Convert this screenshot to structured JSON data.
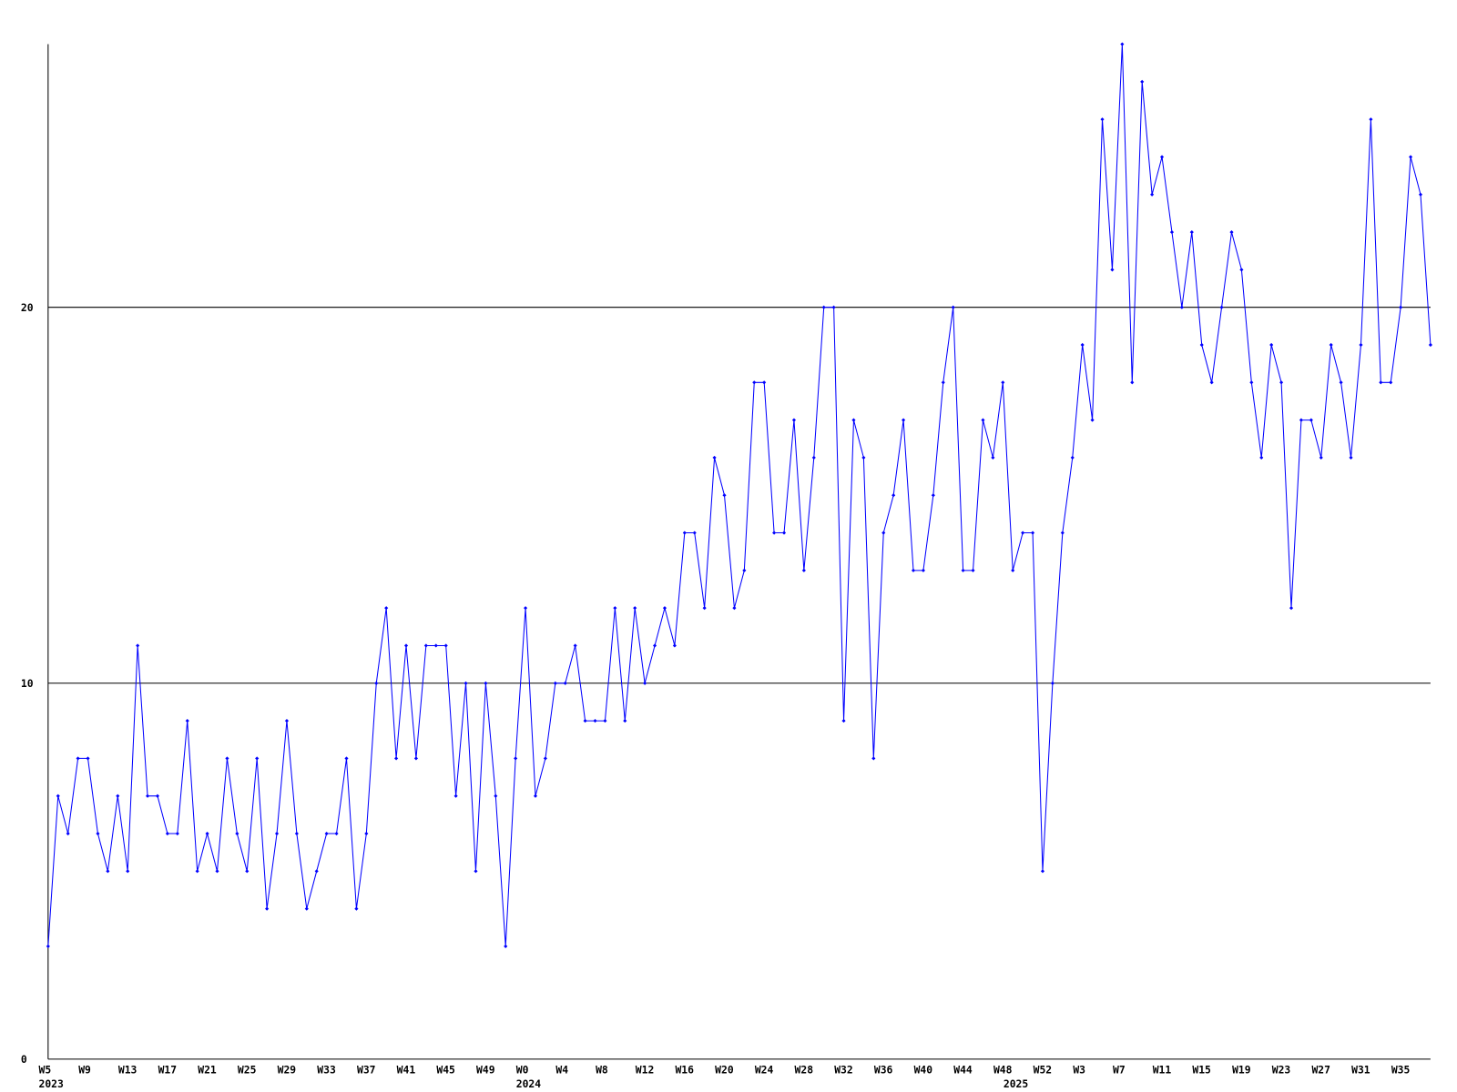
{
  "chart_data": {
    "type": "line",
    "color": "#0000ff",
    "grid": true,
    "ylim": [
      0,
      27
    ],
    "yticks": [
      0,
      10,
      20
    ],
    "categories": [
      "W5",
      null,
      null,
      null,
      "W9",
      null,
      null,
      null,
      "W13",
      null,
      null,
      null,
      "W17",
      null,
      null,
      null,
      "W21",
      null,
      null,
      null,
      "W25",
      null,
      null,
      null,
      "W29",
      null,
      null,
      null,
      "W33",
      null,
      null,
      null,
      "W37",
      null,
      null,
      null,
      "W41",
      null,
      null,
      null,
      "W45",
      null,
      null,
      null,
      "W49",
      null,
      null,
      null,
      "W0",
      null,
      null,
      null,
      "W4",
      null,
      null,
      null,
      "W8",
      null,
      null,
      null,
      "W12",
      null,
      null,
      null,
      "W16",
      null,
      null,
      null,
      "W20",
      null,
      null,
      null,
      "W24",
      null,
      null,
      null,
      "W28",
      null,
      null,
      null,
      "W32",
      null,
      null,
      null,
      "W36",
      null,
      null,
      null,
      "W40",
      null,
      null,
      null,
      "W44",
      null,
      null,
      null,
      "W48",
      null,
      null,
      null,
      "W52",
      null,
      null,
      null,
      "W3",
      null,
      null,
      null,
      "W7",
      null,
      null,
      null,
      "W11",
      null,
      null,
      null,
      "W15",
      null,
      null,
      null,
      "W19",
      null,
      null,
      null,
      "W23",
      null,
      null,
      null,
      "W27",
      null,
      null,
      null,
      "W31",
      null,
      null,
      null,
      "W35",
      null,
      null,
      null
    ],
    "years": [
      "2023",
      null,
      null,
      null,
      null,
      null,
      null,
      null,
      null,
      null,
      null,
      null,
      null,
      null,
      null,
      null,
      null,
      null,
      null,
      null,
      null,
      null,
      null,
      null,
      null,
      null,
      null,
      null,
      null,
      null,
      null,
      null,
      null,
      null,
      null,
      null,
      null,
      null,
      null,
      null,
      null,
      null,
      null,
      null,
      null,
      null,
      null,
      null,
      "2024",
      null,
      null,
      null,
      null,
      null,
      null,
      null,
      null,
      null,
      null,
      null,
      null,
      null,
      null,
      null,
      null,
      null,
      null,
      null,
      null,
      null,
      null,
      null,
      null,
      null,
      null,
      null,
      null,
      null,
      null,
      null,
      null,
      null,
      null,
      null,
      null,
      null,
      null,
      null,
      null,
      null,
      null,
      null,
      null,
      null,
      null,
      null,
      null,
      "2025",
      null,
      null,
      null,
      null,
      null,
      null,
      null,
      null,
      null,
      null,
      null,
      null,
      null,
      null,
      null,
      null,
      null,
      null,
      null,
      null,
      null,
      null,
      null,
      null,
      null,
      null,
      null,
      null,
      null,
      null,
      null,
      null,
      null,
      null,
      null,
      null,
      null,
      null
    ],
    "values": [
      3,
      7,
      6,
      8,
      8,
      6,
      5,
      7,
      5,
      11,
      7,
      7,
      6,
      6,
      9,
      5,
      6,
      5,
      8,
      6,
      5,
      8,
      4,
      6,
      9,
      6,
      4,
      5,
      6,
      6,
      8,
      4,
      6,
      10,
      12,
      8,
      11,
      8,
      11,
      11,
      11,
      7,
      10,
      5,
      10,
      7,
      3,
      8,
      12,
      7,
      8,
      10,
      10,
      11,
      9,
      9,
      9,
      12,
      9,
      12,
      10,
      11,
      12,
      11,
      14,
      14,
      12,
      16,
      15,
      12,
      13,
      18,
      18,
      14,
      14,
      17,
      13,
      16,
      20,
      20,
      9,
      17,
      16,
      8,
      14,
      15,
      17,
      13,
      13,
      15,
      18,
      20,
      13,
      13,
      17,
      16,
      18,
      13,
      14,
      14,
      5,
      10,
      14,
      16,
      19,
      17,
      25,
      21,
      27,
      18,
      26,
      23,
      24,
      22,
      20,
      22,
      19,
      18,
      20,
      22,
      21,
      18,
      16,
      19,
      18,
      12,
      17,
      17,
      16,
      19,
      18,
      16,
      19,
      25,
      18,
      18,
      20,
      24,
      23,
      19
    ]
  }
}
